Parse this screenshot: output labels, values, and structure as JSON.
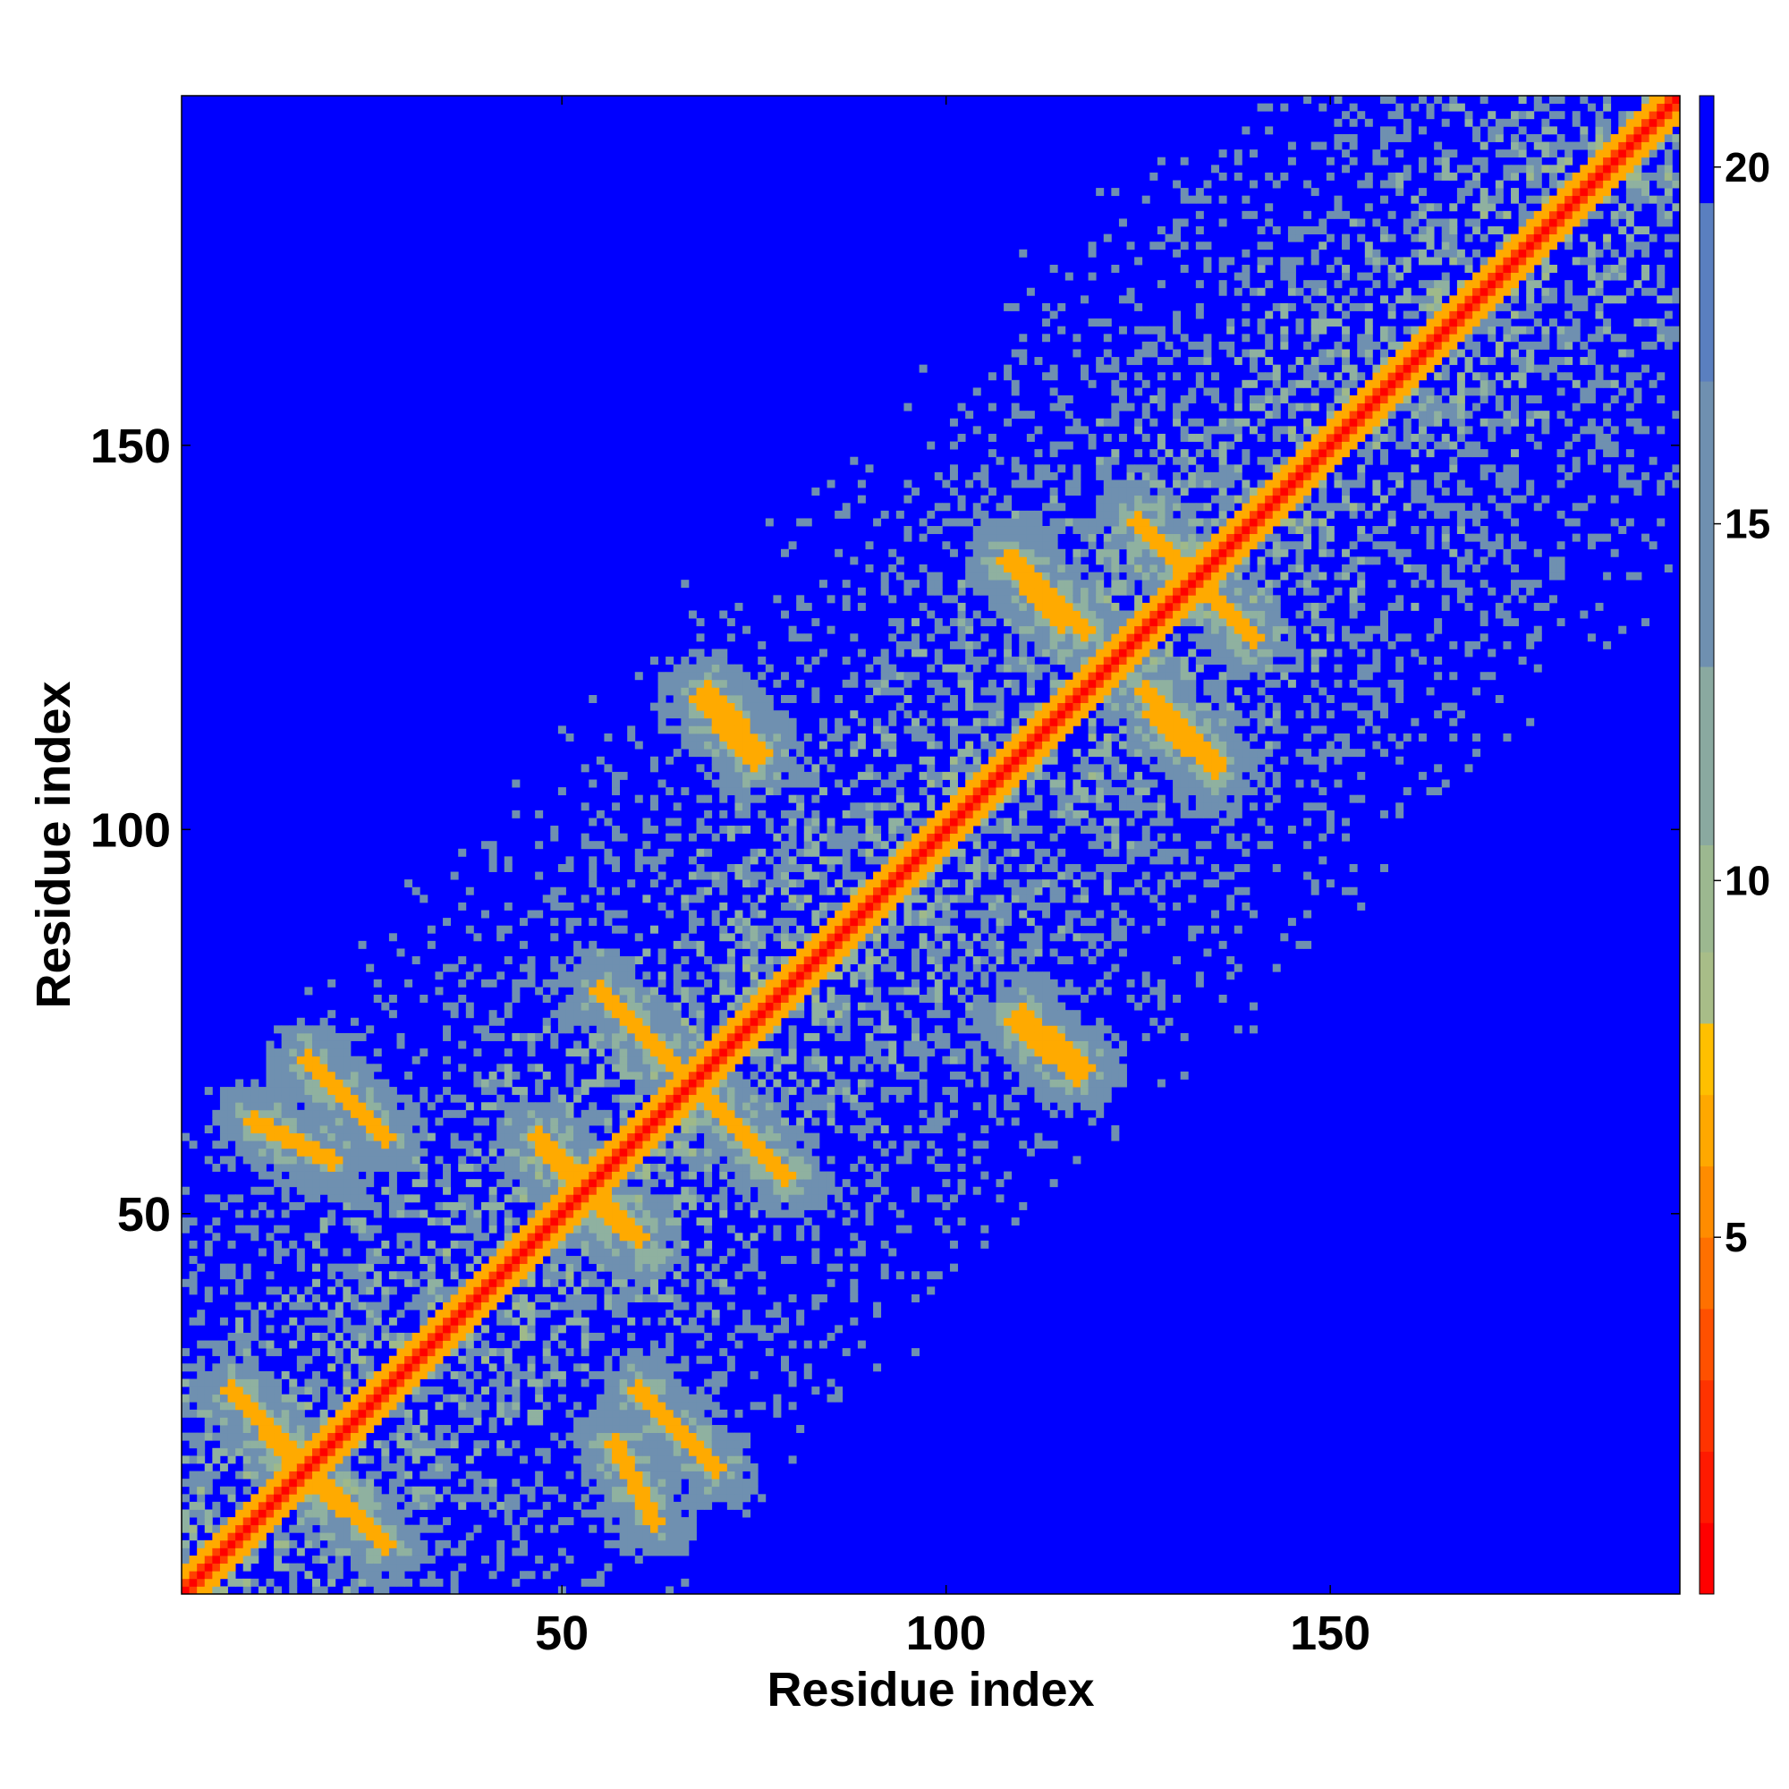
{
  "chart_data": {
    "type": "heatmap",
    "title": "",
    "xlabel": "Residue index",
    "ylabel": "Residue index",
    "xlim": [
      1,
      195
    ],
    "ylim": [
      1,
      195
    ],
    "x_ticks": [
      50,
      100,
      150
    ],
    "y_ticks": [
      50,
      100,
      150
    ],
    "colorbar": {
      "range": [
        0,
        21
      ],
      "ticks": [
        5,
        10,
        15,
        20
      ],
      "colors": [
        "#ff0000",
        "#ff4000",
        "#ff8000",
        "#ffaa00",
        "#9fb98a",
        "#8fb1a0",
        "#6f90b0",
        "#0000ff"
      ]
    },
    "features": {
      "diagonal": "distance ~0-4 along i = j",
      "contact_bands": [
        {
          "from": [
            7,
            27
          ],
          "to": [
            20,
            13
          ],
          "value": 6
        },
        {
          "from": [
            10,
            62
          ],
          "to": [
            20,
            57
          ],
          "value": 6
        },
        {
          "from": [
            55,
            79
          ],
          "to": [
            78,
            56
          ],
          "value": 6
        },
        {
          "from": [
            48,
            58
          ],
          "to": [
            60,
            47
          ],
          "value": 6
        },
        {
          "from": [
            60,
            27
          ],
          "to": [
            70,
            17
          ],
          "value": 6
        },
        {
          "from": [
            68,
            117
          ],
          "to": [
            75,
            109
          ],
          "value": 6
        },
        {
          "from": [
            110,
            76
          ],
          "to": [
            118,
            69
          ],
          "value": 6
        },
        {
          "from": [
            109,
            135
          ],
          "to": [
            118,
            126
          ],
          "value": 6
        },
        {
          "from": [
            125,
            140
          ],
          "to": [
            140,
            125
          ],
          "value": 6
        },
        {
          "from": [
            127,
            115
          ],
          "to": [
            135,
            108
          ],
          "value": 6
        }
      ]
    }
  }
}
